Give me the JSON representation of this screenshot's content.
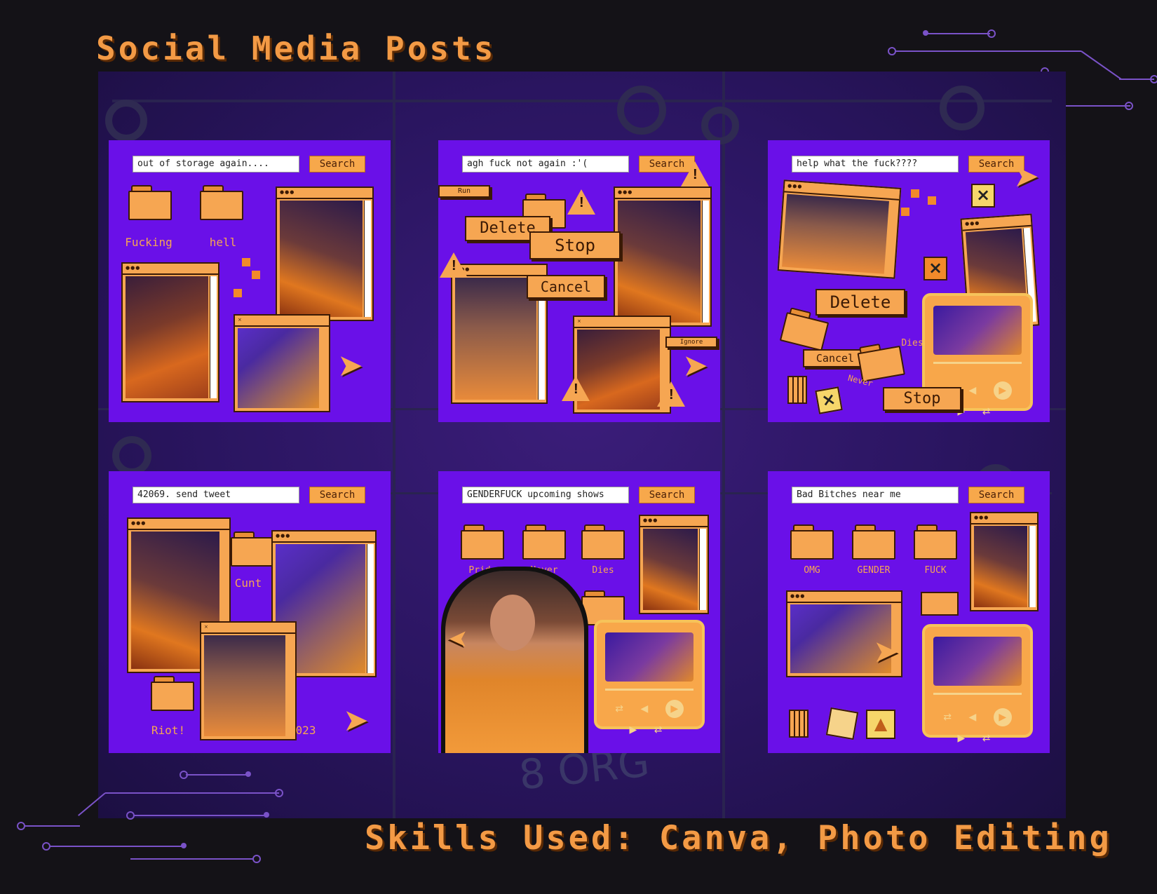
{
  "header": {
    "title": "Social Media Posts"
  },
  "footer": {
    "text": "Skills Used: Canva, Photo Editing"
  },
  "board": {
    "pcb_label": "8 ORG"
  },
  "posts": [
    {
      "search_text": "out of storage again....",
      "search_button": "Search",
      "folders": [
        "Fucking",
        "hell"
      ]
    },
    {
      "search_text": "agh fuck not again :'(",
      "search_button": "Search",
      "buttons": [
        "Run",
        "Delete",
        "Stop",
        "Cancel",
        "Ignore"
      ]
    },
    {
      "search_text": "help what the fuck????",
      "search_button": "Search",
      "buttons": [
        "Delete",
        "Cancel",
        "Stop"
      ],
      "labels": [
        "Dies",
        "Never"
      ]
    },
    {
      "search_text": "42069. send tweet",
      "search_button": "Search",
      "folders": [
        "Cunt",
        "Riot!"
      ],
      "labels": [
        "023"
      ]
    },
    {
      "search_text": "GENDERFUCK upcoming shows",
      "search_button": "Search",
      "folders": [
        "Pride",
        "Never",
        "Dies"
      ]
    },
    {
      "search_text": "Bad Bitches near me",
      "search_button": "Search",
      "folders": [
        "OMG",
        "GENDER",
        "FUCK"
      ]
    }
  ],
  "colors": {
    "background": "#141217",
    "panel": "#6a10e8",
    "accent": "#f6a652",
    "heading": "#f39a45"
  }
}
